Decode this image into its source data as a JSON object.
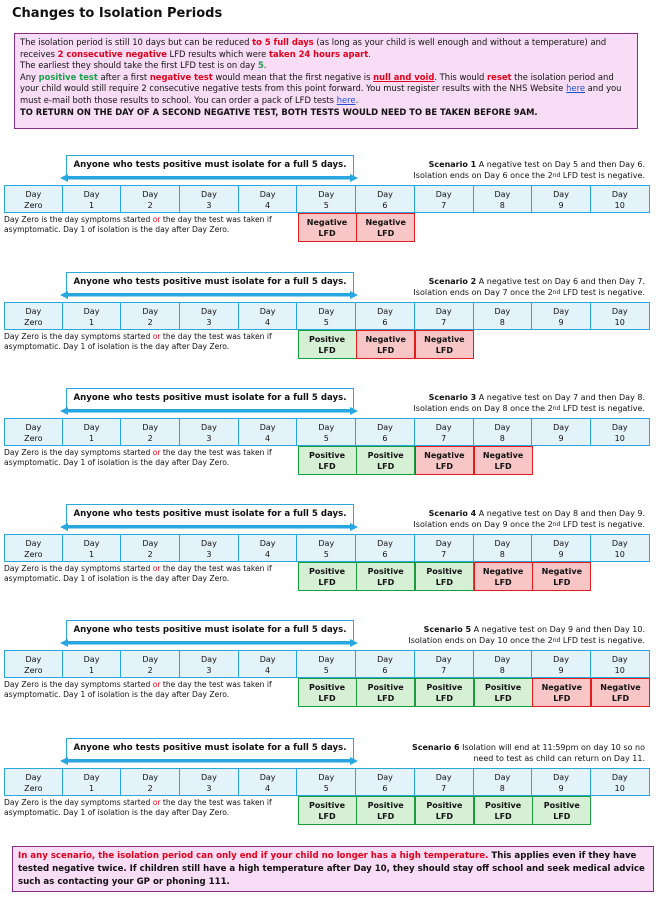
{
  "title": "Changes to Isolation Periods",
  "intro": {
    "p1_a": "The isolation period is still 10 days but can be reduced ",
    "p1_b": "to 5 full days",
    "p1_c": " (as long as your child is well enough and without a temperature) and receives ",
    "p1_d": "2 consecutive negative",
    "p1_e": " LFD results which were ",
    "p1_f": "taken 24 hours apart",
    "p1_g": ".",
    "p2_a": "The earliest they should take the first LFD test is on day ",
    "p2_b": "5",
    "p2_c": ".",
    "p3_a": "Any ",
    "p3_b": "positive test",
    "p3_c": " after a first ",
    "p3_d": "negative test",
    "p3_e": " would mean that the first negative is ",
    "p3_f": "null and void",
    "p3_g": ". This would ",
    "p3_h": "reset",
    "p3_i": " the isolation period and your child would still require 2 consecutive negative tests from this point forward.  You must register results with the NHS Website ",
    "p3_link1": "here",
    "p3_j": " and you must e-mail both those results to school. You can order a pack of LFD tests ",
    "p3_link2": "here",
    "p3_k": ".",
    "p4": "TO RETURN ON THE DAY OF A SECOND NEGATIVE TEST, BOTH TESTS WOULD NEED TO BE TAKEN BEFORE 9AM."
  },
  "banner_text": "Anyone who tests positive must isolate for a full 5 days.",
  "days": [
    {
      "l1": "Day",
      "l2": "Zero"
    },
    {
      "l1": "Day",
      "l2": "1"
    },
    {
      "l1": "Day",
      "l2": "2"
    },
    {
      "l1": "Day",
      "l2": "3"
    },
    {
      "l1": "Day",
      "l2": "4"
    },
    {
      "l1": "Day",
      "l2": "5"
    },
    {
      "l1": "Day",
      "l2": "6"
    },
    {
      "l1": "Day",
      "l2": "7"
    },
    {
      "l1": "Day",
      "l2": "8"
    },
    {
      "l1": "Day",
      "l2": "9"
    },
    {
      "l1": "Day",
      "l2": "10"
    }
  ],
  "note": {
    "a": "Day Zero is the day symptoms started ",
    "or": "or",
    "b": " the day the test was taken if asymptomatic. Day 1 of isolation is the day after Day Zero."
  },
  "scenarios": [
    {
      "name": "Scenario 1",
      "line1": " A negative test on Day 5 and then Day 6.",
      "line2a": "Isolation ends on Day 6 once the 2",
      "sup": "nd",
      "line2b": " LFD test is negative.",
      "results": [
        {
          "l1": "Negative",
          "l2": "LFD",
          "kind": "neg"
        },
        {
          "l1": "Negative",
          "l2": "LFD",
          "kind": "neg"
        }
      ]
    },
    {
      "name": "Scenario 2",
      "line1": " A negative test on Day 6 and then Day 7.",
      "line2a": "Isolation ends on Day 7 once the 2",
      "sup": "nd",
      "line2b": " LFD test is negative.",
      "results": [
        {
          "l1": "Positive",
          "l2": "LFD",
          "kind": "pos"
        },
        {
          "l1": "Negative",
          "l2": "LFD",
          "kind": "neg"
        },
        {
          "l1": "Negative",
          "l2": "LFD",
          "kind": "neg"
        }
      ]
    },
    {
      "name": "Scenario 3",
      "line1": " A negative test on Day 7 and then Day 8.",
      "line2a": "Isolation ends on Day 8 once the 2",
      "sup": "nd",
      "line2b": " LFD test is negative.",
      "results": [
        {
          "l1": "Positive",
          "l2": "LFD",
          "kind": "pos"
        },
        {
          "l1": "Positive",
          "l2": "LFD",
          "kind": "pos"
        },
        {
          "l1": "Negative",
          "l2": "LFD",
          "kind": "neg"
        },
        {
          "l1": "Negative",
          "l2": "LFD",
          "kind": "neg"
        }
      ]
    },
    {
      "name": "Scenario 4",
      "line1": " A negative test on Day 8 and then Day 9.",
      "line2a": "Isolation ends on Day 9 once the 2",
      "sup": "nd",
      "line2b": " LFD test is negative.",
      "results": [
        {
          "l1": "Positive",
          "l2": "LFD",
          "kind": "pos"
        },
        {
          "l1": "Positive",
          "l2": "LFD",
          "kind": "pos"
        },
        {
          "l1": "Positive",
          "l2": "LFD",
          "kind": "pos"
        },
        {
          "l1": "Negative",
          "l2": "LFD",
          "kind": "neg"
        },
        {
          "l1": "Negative",
          "l2": "LFD",
          "kind": "neg"
        }
      ]
    },
    {
      "name": "Scenario 5",
      "line1": " A negative test on Day 9 and then Day 10.",
      "line2a": "Isolation ends on Day 10 once the 2",
      "sup": "nd",
      "line2b": " LFD test is negative.",
      "results": [
        {
          "l1": "Positive",
          "l2": "LFD",
          "kind": "pos"
        },
        {
          "l1": "Positive",
          "l2": "LFD",
          "kind": "pos"
        },
        {
          "l1": "Positive",
          "l2": "LFD",
          "kind": "pos"
        },
        {
          "l1": "Positive",
          "l2": "LFD",
          "kind": "pos"
        },
        {
          "l1": "Negative",
          "l2": "LFD",
          "kind": "neg"
        },
        {
          "l1": "Negative",
          "l2": "LFD",
          "kind": "neg"
        }
      ]
    },
    {
      "name": "Scenario 6",
      "line1": " Isolation will end at 11:59pm on day 10 so no",
      "line2a": "need to test as child can return on Day 11.",
      "sup": "",
      "line2b": "",
      "results": [
        {
          "l1": "Positive",
          "l2": "LFD",
          "kind": "pos"
        },
        {
          "l1": "Positive",
          "l2": "LFD",
          "kind": "pos"
        },
        {
          "l1": "Positive",
          "l2": "LFD",
          "kind": "pos"
        },
        {
          "l1": "Positive",
          "l2": "LFD",
          "kind": "pos"
        },
        {
          "l1": "Positive",
          "l2": "LFD",
          "kind": "pos"
        }
      ]
    }
  ],
  "footer": {
    "a": "In any scenario, the isolation period can only end if your child no longer has a high temperature.",
    "b": " This applies even if they have tested negative twice. If children still have a high temperature after Day 10, they should stay off school and seek medical advice such as contacting your GP or phoning 111."
  },
  "colors": {
    "banner_border": "#27a6df",
    "positive": "#1a9b3e",
    "negative": "#e31b1b",
    "box_bg": "#f9dcf5"
  }
}
